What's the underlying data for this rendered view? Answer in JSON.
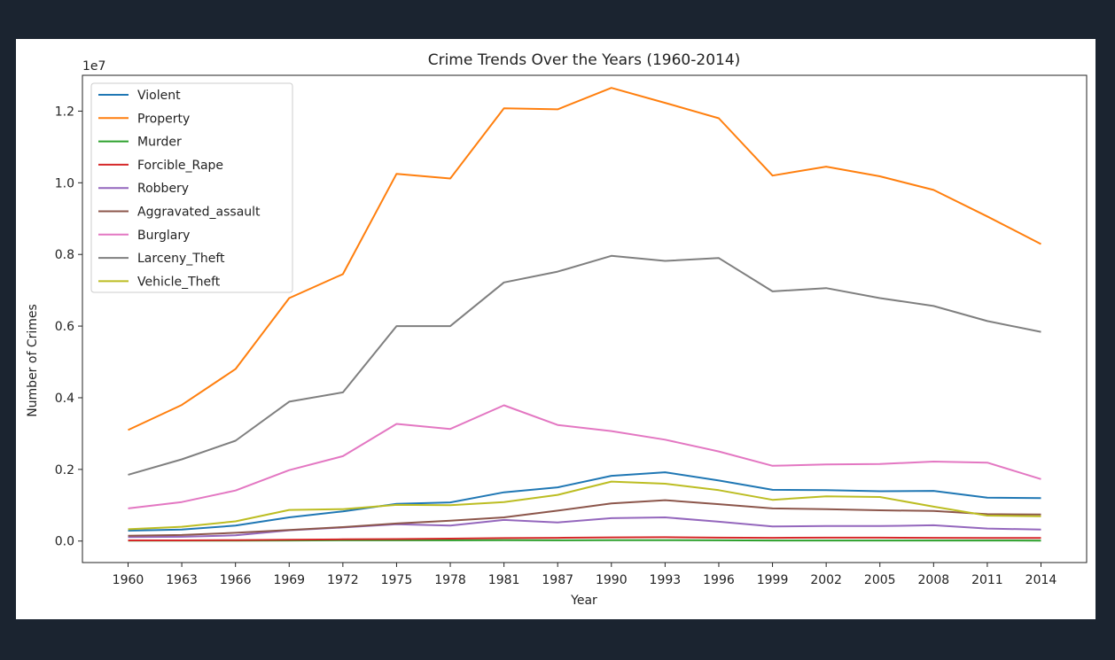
{
  "chart_data": {
    "type": "line",
    "title": "Crime Trends Over the Years (1960-2014)",
    "xlabel": "Year",
    "ylabel": "Number of Crimes",
    "y_offset_label": "1e7",
    "y_multiplier": 10000000,
    "ylim": [
      -0.06,
      1.3
    ],
    "yticks": [
      0.0,
      0.2,
      0.4,
      0.6,
      0.8,
      1.0,
      1.2
    ],
    "ytick_labels": [
      "0.0",
      "0.2",
      "0.4",
      "0.6",
      "0.8",
      "1.0",
      "1.2"
    ],
    "grid": false,
    "legend_position": "top-left",
    "x": [
      "1960",
      "1963",
      "1966",
      "1969",
      "1972",
      "1975",
      "1978",
      "1981",
      "1987",
      "1990",
      "1993",
      "1996",
      "1999",
      "2002",
      "2005",
      "2008",
      "2011",
      "2014"
    ],
    "series": [
      {
        "name": "Violent",
        "color": "#1f77b4",
        "values": [
          0.029,
          0.032,
          0.043,
          0.066,
          0.083,
          0.104,
          0.108,
          0.136,
          0.15,
          0.182,
          0.192,
          0.169,
          0.143,
          0.142,
          0.139,
          0.14,
          0.121,
          0.12
        ]
      },
      {
        "name": "Property",
        "color": "#ff7f0e",
        "values": [
          0.31,
          0.38,
          0.48,
          0.678,
          0.745,
          1.025,
          1.012,
          1.208,
          1.205,
          1.265,
          1.223,
          1.18,
          1.02,
          1.045,
          1.018,
          0.98,
          0.906,
          0.829
        ]
      },
      {
        "name": "Murder",
        "color": "#2ca02c",
        "values": [
          0.001,
          0.001,
          0.001,
          0.0015,
          0.002,
          0.002,
          0.002,
          0.0023,
          0.002,
          0.0023,
          0.0025,
          0.002,
          0.0015,
          0.0016,
          0.0016,
          0.0016,
          0.0015,
          0.0014
        ]
      },
      {
        "name": "Forcible_Rape",
        "color": "#d62728",
        "values": [
          0.0017,
          0.0018,
          0.0026,
          0.0037,
          0.0047,
          0.0056,
          0.0067,
          0.0082,
          0.0091,
          0.0103,
          0.0106,
          0.0096,
          0.0089,
          0.0095,
          0.0094,
          0.009,
          0.0084,
          0.0085
        ]
      },
      {
        "name": "Robbery",
        "color": "#9467bd",
        "values": [
          0.011,
          0.012,
          0.016,
          0.03,
          0.038,
          0.047,
          0.043,
          0.059,
          0.052,
          0.064,
          0.066,
          0.054,
          0.041,
          0.042,
          0.042,
          0.044,
          0.035,
          0.032
        ]
      },
      {
        "name": "Aggravated_assault",
        "color": "#8c564b",
        "values": [
          0.015,
          0.017,
          0.023,
          0.031,
          0.039,
          0.049,
          0.057,
          0.066,
          0.085,
          0.105,
          0.114,
          0.103,
          0.091,
          0.089,
          0.086,
          0.084,
          0.075,
          0.074
        ]
      },
      {
        "name": "Burglary",
        "color": "#e377c2",
        "values": [
          0.091,
          0.109,
          0.141,
          0.198,
          0.237,
          0.327,
          0.313,
          0.379,
          0.324,
          0.307,
          0.283,
          0.25,
          0.21,
          0.214,
          0.215,
          0.222,
          0.219,
          0.173
        ]
      },
      {
        "name": "Larceny_Theft",
        "color": "#7f7f7f",
        "values": [
          0.185,
          0.228,
          0.28,
          0.389,
          0.415,
          0.6,
          0.6,
          0.722,
          0.752,
          0.796,
          0.782,
          0.79,
          0.697,
          0.706,
          0.678,
          0.656,
          0.614,
          0.584
        ]
      },
      {
        "name": "Vehicle_Theft",
        "color": "#bcbd22",
        "values": [
          0.033,
          0.04,
          0.055,
          0.087,
          0.089,
          0.101,
          0.1,
          0.109,
          0.129,
          0.166,
          0.16,
          0.142,
          0.115,
          0.125,
          0.123,
          0.096,
          0.071,
          0.069
        ]
      }
    ]
  }
}
